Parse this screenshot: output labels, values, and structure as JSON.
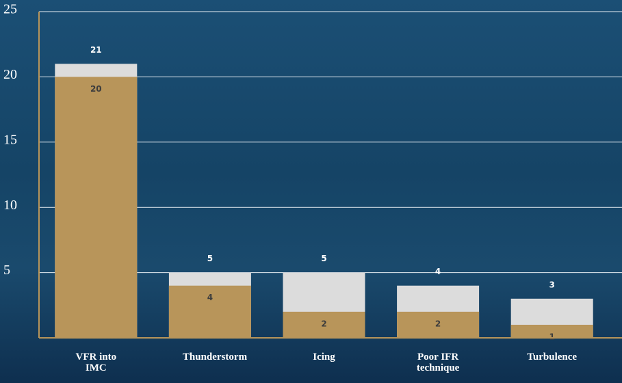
{
  "chart_data": {
    "type": "bar",
    "overlap": true,
    "categories": [
      "VFR into IMC",
      "Thunderstorm",
      "Icing",
      "Poor IFR technique",
      "Turbulence"
    ],
    "series": [
      {
        "color": "#dcdcdc",
        "values": [
          21,
          5,
          5,
          4,
          3
        ]
      },
      {
        "color": "#b8955a",
        "values": [
          20,
          4,
          2,
          2,
          1
        ]
      }
    ],
    "ylim": [
      0,
      25
    ],
    "yticks": [
      5,
      10,
      15,
      20,
      25
    ],
    "grid": true
  }
}
